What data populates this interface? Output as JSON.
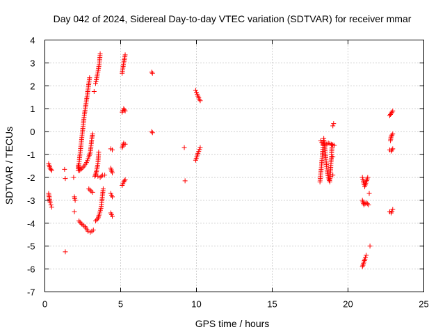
{
  "chart_data": {
    "type": "scatter",
    "title": "Day 042 of 2024, Sidereal Day-to-day VTEC variation (SDTVAR) for receiver mmar",
    "xlabel": "GPS time / hours",
    "ylabel": "SDTVAR / TECUs",
    "xlim": [
      0,
      25
    ],
    "ylim": [
      -7,
      4
    ],
    "xticks": [
      0,
      5,
      10,
      15,
      20,
      25
    ],
    "yticks": [
      -7,
      -6,
      -5,
      -4,
      -3,
      -2,
      -1,
      0,
      1,
      2,
      3,
      4
    ],
    "grid": true,
    "marker": "+",
    "color": "#ff0000",
    "series": [
      {
        "name": "SDTVAR",
        "segments": [
          [
            [
              0.25,
              -1.4
            ],
            [
              0.35,
              -1.6
            ],
            [
              0.45,
              -1.7
            ]
          ],
          [
            [
              0.25,
              -2.7
            ],
            [
              0.3,
              -2.9
            ],
            [
              0.35,
              -3.1
            ],
            [
              0.4,
              -3.2
            ],
            [
              0.45,
              -3.3
            ]
          ],
          [
            [
              1.3,
              -1.65
            ]
          ],
          [
            [
              1.35,
              -2.05
            ]
          ],
          [
            [
              1.35,
              -5.25
            ]
          ],
          [
            [
              1.9,
              -2.0
            ]
          ],
          [
            [
              1.95,
              -2.85
            ],
            [
              2.0,
              -3.0
            ]
          ],
          [
            [
              1.95,
              -3.5
            ]
          ],
          [
            [
              2.2,
              -1.7
            ],
            [
              2.4,
              -0.5
            ],
            [
              2.6,
              0.7
            ],
            [
              2.8,
              1.6
            ],
            [
              2.95,
              2.35
            ]
          ],
          [
            [
              2.2,
              -1.5
            ],
            [
              2.3,
              -1.7
            ],
            [
              2.45,
              -1.6
            ],
            [
              2.6,
              -1.5
            ],
            [
              2.75,
              -1.35
            ],
            [
              2.9,
              -1.1
            ],
            [
              3.0,
              -0.9
            ],
            [
              3.05,
              -0.6
            ],
            [
              3.1,
              -0.3
            ],
            [
              3.15,
              -0.1
            ]
          ],
          [
            [
              2.25,
              -3.9
            ],
            [
              2.45,
              -4.05
            ],
            [
              2.65,
              -4.15
            ],
            [
              2.85,
              -4.35
            ],
            [
              3.0,
              -4.4
            ],
            [
              3.2,
              -4.3
            ]
          ],
          [
            [
              2.9,
              -2.5
            ],
            [
              3.05,
              -2.6
            ],
            [
              3.15,
              -2.65
            ]
          ],
          [
            [
              3.3,
              -1.95
            ],
            [
              3.4,
              -1.75
            ],
            [
              3.5,
              -1.4
            ],
            [
              3.55,
              -0.9
            ]
          ],
          [
            [
              3.35,
              -1.9
            ],
            [
              3.5,
              -1.95
            ],
            [
              3.65,
              -2.0
            ],
            [
              3.8,
              -1.9
            ],
            [
              3.95,
              -1.9
            ]
          ],
          [
            [
              3.35,
              -3.9
            ],
            [
              3.5,
              -3.8
            ],
            [
              3.6,
              -3.6
            ],
            [
              3.7,
              -3.35
            ],
            [
              3.75,
              -3.1
            ],
            [
              3.8,
              -2.8
            ],
            [
              3.85,
              -2.5
            ]
          ],
          [
            [
              3.25,
              1.75
            ]
          ],
          [
            [
              3.35,
              2.1
            ],
            [
              3.5,
              2.6
            ],
            [
              3.6,
              3.0
            ],
            [
              3.65,
              3.4
            ]
          ],
          [
            [
              4.35,
              -0.75
            ],
            [
              4.45,
              -0.8
            ]
          ],
          [
            [
              4.35,
              -1.6
            ],
            [
              4.45,
              -1.8
            ]
          ],
          [
            [
              4.35,
              -2.7
            ],
            [
              4.45,
              -2.85
            ]
          ],
          [
            [
              4.35,
              -3.55
            ],
            [
              4.45,
              -3.7
            ]
          ],
          [
            [
              5.1,
              2.55
            ],
            [
              5.2,
              3.0
            ],
            [
              5.3,
              3.35
            ]
          ],
          [
            [
              5.1,
              0.85
            ],
            [
              5.2,
              1.0
            ],
            [
              5.3,
              0.9
            ]
          ],
          [
            [
              5.1,
              -0.7
            ],
            [
              5.2,
              -0.5
            ],
            [
              5.3,
              -0.55
            ]
          ],
          [
            [
              5.1,
              -2.35
            ],
            [
              5.2,
              -2.2
            ],
            [
              5.3,
              -2.1
            ]
          ],
          [
            [
              7.05,
              2.6
            ],
            [
              7.1,
              2.55
            ]
          ],
          [
            [
              7.05,
              0.0
            ],
            [
              7.1,
              -0.05
            ]
          ],
          [
            [
              9.2,
              -0.7
            ]
          ],
          [
            [
              9.25,
              -2.15
            ]
          ],
          [
            [
              9.95,
              1.8
            ],
            [
              10.1,
              1.55
            ],
            [
              10.25,
              1.35
            ]
          ],
          [
            [
              9.95,
              -1.25
            ],
            [
              10.1,
              -0.95
            ],
            [
              10.25,
              -0.7
            ]
          ],
          [
            [
              18.15,
              -2.2
            ],
            [
              18.25,
              -1.5
            ],
            [
              18.35,
              -0.7
            ],
            [
              18.4,
              -0.3
            ],
            [
              18.5,
              -0.9
            ],
            [
              18.6,
              -1.6
            ],
            [
              18.7,
              -2.0
            ],
            [
              18.8,
              -2.2
            ],
            [
              18.95,
              -0.6
            ]
          ],
          [
            [
              18.2,
              -0.4
            ],
            [
              18.35,
              -0.55
            ],
            [
              18.5,
              -0.6
            ],
            [
              18.7,
              -0.5
            ],
            [
              18.9,
              -0.55
            ],
            [
              19.1,
              -0.6
            ]
          ],
          [
            [
              19.0,
              0.25
            ],
            [
              19.05,
              0.35
            ]
          ],
          [
            [
              19.0,
              -1.1
            ]
          ],
          [
            [
              19.0,
              -1.9
            ]
          ],
          [
            [
              20.95,
              -2.0
            ],
            [
              21.1,
              -2.4
            ],
            [
              21.2,
              -2.2
            ],
            [
              21.3,
              -2.0
            ]
          ],
          [
            [
              20.95,
              -3.0
            ],
            [
              21.05,
              -3.2
            ],
            [
              21.2,
              -3.1
            ],
            [
              21.35,
              -3.2
            ]
          ],
          [
            [
              21.4,
              -2.7
            ]
          ],
          [
            [
              20.95,
              -5.9
            ],
            [
              21.05,
              -5.7
            ],
            [
              21.15,
              -5.5
            ],
            [
              21.2,
              -5.4
            ]
          ],
          [
            [
              21.45,
              -5.0
            ]
          ],
          [
            [
              22.75,
              0.7
            ],
            [
              22.85,
              0.8
            ],
            [
              22.95,
              0.9
            ]
          ],
          [
            [
              22.8,
              -0.4
            ],
            [
              22.85,
              -0.2
            ],
            [
              22.95,
              -0.1
            ]
          ],
          [
            [
              22.75,
              -0.8
            ],
            [
              22.85,
              -0.85
            ],
            [
              22.95,
              -0.75
            ]
          ],
          [
            [
              22.75,
              -3.5
            ],
            [
              22.85,
              -3.55
            ],
            [
              22.95,
              -3.4
            ]
          ]
        ]
      }
    ]
  }
}
